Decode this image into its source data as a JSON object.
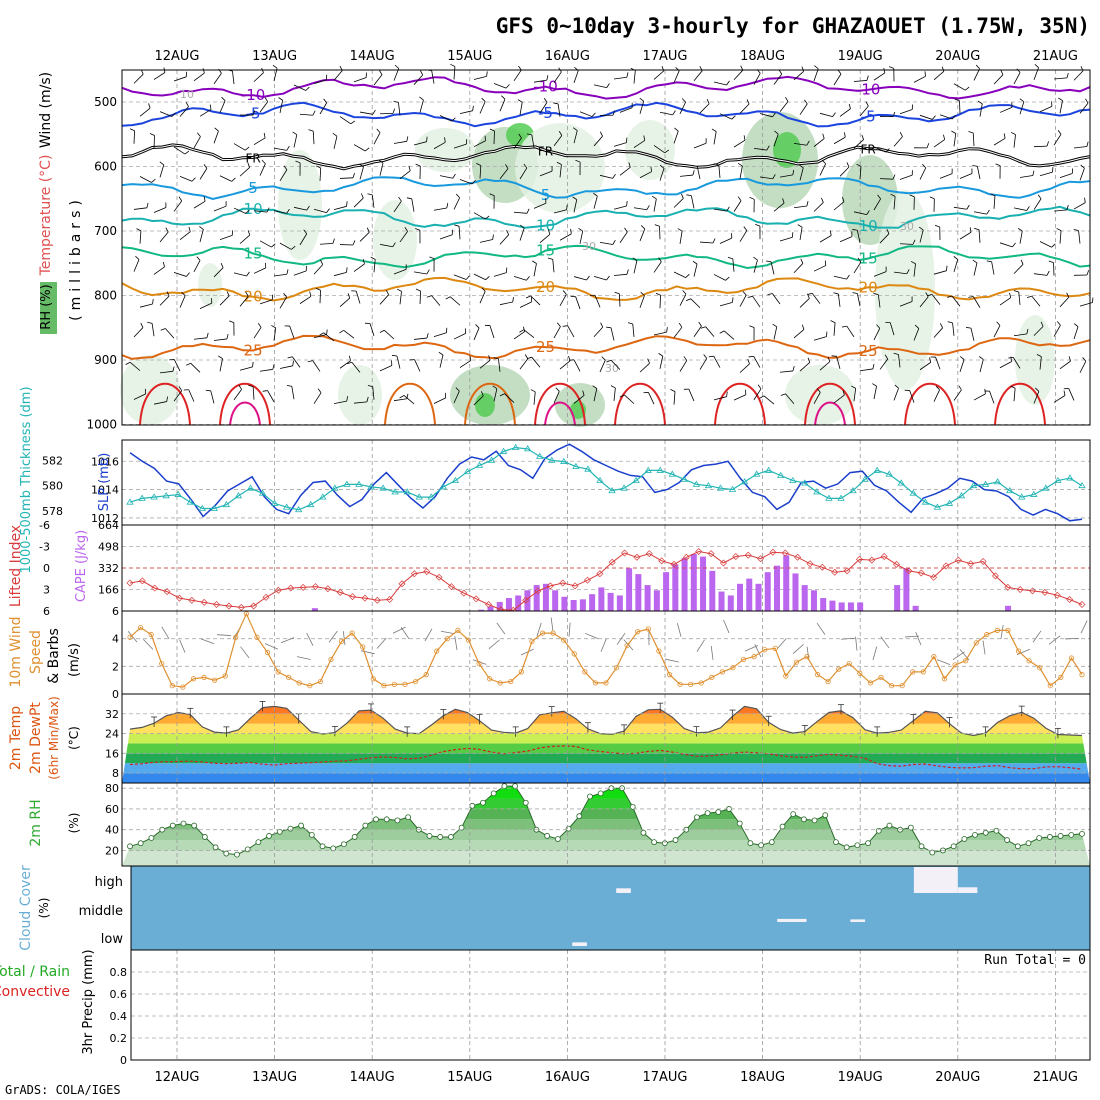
{
  "header": {
    "title": "GFS 0~10day 3-hourly for GHAZAOUET (1.75W, 35N)",
    "credit": "GrADS: COLA/IGES"
  },
  "colors": {
    "rh_light": "#e3f1e3",
    "rh_mid": "#b9d8b9",
    "rh_dark": "#8aa88a",
    "rh_green": "#55cc55",
    "t_violet": "#8800bb",
    "t_blue": "#1a44dd",
    "t_sky": "#1899dd",
    "t_teal": "#18b0b0",
    "t_green": "#11b884",
    "t_orange": "#dd8811",
    "t_darkorange": "#dd6611",
    "t_red": "#dd2222",
    "t_magenta": "#dd1188",
    "freeze": "#000000",
    "slp": "#1a3fcc",
    "thickness": "#22b4b4",
    "lifted": "#d83a3a",
    "cape": "#bb66ee",
    "wind": "#e09030",
    "cloud": "#6aaed6",
    "rh2m": "#33aa33"
  },
  "chart_data": [
    {
      "panel": "upper-air",
      "type": "contour",
      "ylabel_parts": [
        "RH (%)",
        "Temperature (°C)",
        "Wind (m/s)"
      ],
      "yaxis_title": "(millibars)",
      "ylim": [
        1000,
        450
      ],
      "yticks": [
        500,
        600,
        700,
        800,
        900,
        1000
      ],
      "xticks": [
        "12AUG",
        "13AUG",
        "14AUG",
        "15AUG",
        "16AUG",
        "17AUG",
        "18AUG",
        "19AUG",
        "20AUG",
        "21AUG"
      ],
      "isotherms": [
        {
          "value": -10,
          "label": "-10",
          "pressure": 478,
          "color": "t_violet"
        },
        {
          "value": -5,
          "label": "-5",
          "pressure": 520,
          "color": "t_blue"
        },
        {
          "value": 0,
          "label": "FR",
          "pressure": 585,
          "color": "freeze"
        },
        {
          "value": 5,
          "label": "5",
          "pressure": 632,
          "color": "t_sky"
        },
        {
          "value": 10,
          "label": "10",
          "pressure": 680,
          "color": "t_teal"
        },
        {
          "value": 15,
          "label": "15",
          "pressure": 740,
          "color": "t_green"
        },
        {
          "value": 20,
          "label": "20",
          "pressure": 790,
          "color": "t_orange"
        },
        {
          "value": 25,
          "label": "25",
          "pressure": 880,
          "color": "t_darkorange"
        }
      ],
      "rh_labels": [
        "10",
        "30",
        "30",
        "30"
      ]
    },
    {
      "panel": "slp-thickness",
      "type": "line",
      "ylabel_left": "1000-500mb Thickness (dm)",
      "ylabel_right": "SLP (mb)",
      "thickness_ticks": [
        578,
        580,
        582
      ],
      "slp_ticks": [
        1012,
        1014,
        1016
      ],
      "thickness_range": [
        576.9,
        583.6
      ],
      "slp_range": [
        1011.5,
        1017.5
      ],
      "series": [
        {
          "name": "SLP",
          "axis": "right",
          "values": [
            1016.6,
            1016,
            1015.5,
            1014.6,
            1014.4,
            1013.3,
            1012.1,
            1012.9,
            1013.9,
            1014.4,
            1014.9,
            1013.5,
            1012.6,
            1012.3,
            1013.6,
            1014.5,
            1014.6,
            1013.6,
            1012.8,
            1013.3,
            1014.4,
            1015.2,
            1014.3,
            1013.4,
            1012.7,
            1013.5,
            1014.8,
            1015.8,
            1016.3,
            1016.1,
            1016.7,
            1015.7,
            1015.4,
            1014.8,
            1016.2,
            1016.8,
            1017.2,
            1016.7,
            1016.1,
            1015.7,
            1015.3,
            1015,
            1014.9,
            1013.8,
            1014,
            1014.5,
            1015.4,
            1015.7,
            1015.8,
            1016,
            1014.8,
            1013.8,
            1013.5,
            1012.6,
            1013.1,
            1014.5,
            1014.6,
            1014.1,
            1014.4,
            1015.2,
            1015.3,
            1014.3,
            1013.9,
            1013.1,
            1012.4,
            1013.4,
            1013.7,
            1014.1,
            1014.8,
            1014.6,
            1014,
            1013.9,
            1013.5,
            1012.6,
            1012.2,
            1012.6,
            1012.3,
            1011.8,
            1011.9
          ]
        },
        {
          "name": "Thickness",
          "axis": "left",
          "values": [
            578.7,
            579,
            579.1,
            579.2,
            579.3,
            578.7,
            578.2,
            578.2,
            578.5,
            579.2,
            579.8,
            579.4,
            578.6,
            578.3,
            578.1,
            578.5,
            579.1,
            579.8,
            580.1,
            580.1,
            579.9,
            579.8,
            579.5,
            579.5,
            579.1,
            579.1,
            579.9,
            580.4,
            581.1,
            581.6,
            582,
            582.7,
            583,
            582.9,
            582.3,
            582,
            581.9,
            581.5,
            581.3,
            580.4,
            579.6,
            579.8,
            580.4,
            581.2,
            581.2,
            580.9,
            580.5,
            580.1,
            580,
            579.8,
            579.7,
            580.3,
            580.9,
            581.2,
            580.8,
            580.4,
            580.2,
            579.5,
            579,
            579,
            579.6,
            580.5,
            581.2,
            580.9,
            580.2,
            579.4,
            578.7,
            578.3,
            578.6,
            579.2,
            580,
            580.1,
            580.3,
            579.6,
            579.1,
            579.3,
            579.8,
            580.4,
            580.6,
            580
          ]
        }
      ]
    },
    {
      "panel": "lifted-cape",
      "type": "bar+line",
      "ylabel_left": "Lifted Index",
      "ylabel_right": "CAPE (J/kg)",
      "lifted_ticks": [
        "-6",
        "-3",
        "0",
        "3",
        "6"
      ],
      "cape_ticks": [
        166,
        332,
        498,
        664
      ],
      "lifted_range": [
        -6,
        6
      ],
      "cape_range": [
        0,
        664
      ],
      "lifted_index": [
        2.1,
        1.8,
        2.8,
        3.3,
        4.2,
        4.5,
        4.8,
        5.1,
        5.3,
        5.5,
        5.3,
        4.1,
        3.1,
        2.8,
        2.7,
        2.6,
        2.9,
        3.4,
        4.0,
        4.2,
        4.5,
        4.4,
        2.2,
        0.8,
        0.5,
        1.3,
        2.6,
        3.5,
        4.3,
        5.1,
        5.8,
        5.9,
        4.5,
        3.2,
        2.5,
        2.1,
        2.5,
        1.7,
        0.8,
        -0.8,
        -2.1,
        -1.5,
        -2.0,
        -1.0,
        -0.5,
        -1.5,
        -2.3,
        -2.0,
        -0.7,
        -1.6,
        -1.8,
        -1.3,
        -2.2,
        -2.1,
        -1.5,
        -0.6,
        -0.1,
        0.6,
        0.4,
        -1.2,
        -1.1,
        -1.6,
        -0.5,
        0.4,
        0.7,
        1.3,
        -0.3,
        -1.1,
        -0.6,
        -0.9,
        1.1,
        2.7,
        3.0,
        3.2,
        3.4,
        3.8,
        4.4,
        5.1
      ],
      "cape_values": [
        0,
        0,
        0,
        0,
        0,
        0,
        0,
        0,
        0,
        0,
        0,
        0,
        0,
        0,
        0,
        0,
        0,
        0,
        0,
        0,
        22,
        0,
        0,
        0,
        0,
        0,
        0,
        0,
        0,
        0,
        0,
        0,
        0,
        0,
        0,
        0,
        0,
        0,
        10,
        35,
        70,
        100,
        120,
        160,
        200,
        210,
        160,
        110,
        85,
        90,
        130,
        182,
        140,
        120,
        330,
        285,
        200,
        160,
        300,
        360,
        408,
        440,
        420,
        310,
        150,
        120,
        210,
        250,
        210,
        300,
        350,
        430,
        290,
        200,
        160,
        100,
        80,
        66,
        66,
        66,
        0,
        0,
        0,
        200,
        330,
        40,
        0,
        0,
        0,
        0,
        0,
        0,
        0,
        0,
        0,
        40,
        0,
        0,
        0,
        0,
        0,
        0,
        0,
        0
      ]
    },
    {
      "panel": "wind-10m",
      "type": "line",
      "ylabel_left": "10m Wind",
      "ylabel_mid": "Speed",
      "ylabel_right": "& Barbs",
      "yunit": "(m/s)",
      "yticks": [
        0,
        2,
        4,
        6
      ],
      "ylim": [
        0,
        6
      ],
      "values": [
        4.1,
        4.8,
        4.3,
        2.2,
        0.6,
        0.5,
        1.1,
        1.2,
        1.0,
        1.3,
        4.1,
        5.8,
        4.1,
        3.0,
        1.6,
        1.2,
        0.8,
        0.6,
        0.9,
        2.5,
        3.8,
        4.4,
        3.4,
        1.1,
        0.6,
        0.7,
        0.7,
        0.9,
        1.4,
        3.1,
        4.0,
        4.6,
        3.9,
        2.2,
        1.1,
        0.8,
        0.9,
        1.6,
        3.8,
        4.4,
        4.4,
        3.9,
        2.9,
        1.6,
        0.8,
        0.8,
        1.9,
        3.5,
        4.5,
        4.7,
        3.1,
        1.4,
        0.7,
        0.7,
        0.8,
        1.2,
        1.6,
        1.9,
        2.5,
        2.7,
        3.2,
        3.3,
        1.3,
        2.3,
        2.7,
        1.4,
        0.9,
        1.8,
        2.2,
        1.5,
        0.8,
        1.2,
        0.6,
        0.6,
        1.6,
        1.6,
        2.7,
        1.1,
        2.1,
        2.4,
        3.7,
        4.3,
        4.6,
        4.6,
        3.1,
        2.4,
        1.9,
        0.6,
        1.2,
        2.6,
        1.4
      ]
    },
    {
      "panel": "temp-2m",
      "type": "area",
      "ylabel_parts": [
        "2m Temp",
        "2m DewPt",
        "(6hr Min/Max)"
      ],
      "yunit": "(°C)",
      "yticks": [
        8,
        16,
        24,
        32
      ],
      "ylim": [
        4,
        40
      ],
      "temperature": [
        25.8,
        26.5,
        28.2,
        31.2,
        32.5,
        31.7,
        26.7,
        24.6,
        24.2,
        25.5,
        30.2,
        34.5,
        35.0,
        34.2,
        29.5,
        24.8,
        23.8,
        24.4,
        28.2,
        33.2,
        33.5,
        30.2,
        25.8,
        24.2,
        24.0,
        27.4,
        31.2,
        33.8,
        32.5,
        29.2,
        25.4,
        24.5,
        24.2,
        26.0,
        31.6,
        32.4,
        33.0,
        30.0,
        25.9,
        24.0,
        23.7,
        25.0,
        31.0,
        33.6,
        33.8,
        30.6,
        26.0,
        24.3,
        24.6,
        26.3,
        31.0,
        35.0,
        34.0,
        28.5,
        25.6,
        24.2,
        24.8,
        28.8,
        32.5,
        33.2,
        30.4,
        25.5,
        24.2,
        24.5,
        25.4,
        29.2,
        33.0,
        32.4,
        28.0,
        24.2,
        23.2,
        24.2,
        28.5,
        31.2,
        32.6,
        30.2,
        26.2,
        23.6,
        23.4,
        23.2
      ],
      "dewpoint": [
        11.5,
        11.8,
        12.4,
        12.6,
        12.7,
        12.8,
        12.5,
        12.0,
        11.8,
        12.0,
        12.3,
        11.6,
        11.3,
        11.8,
        12.0,
        12.2,
        12.5,
        12.8,
        13.0,
        13.6,
        14.2,
        14.6,
        14.3,
        13.8,
        14.0,
        15.2,
        16.7,
        17.5,
        18.0,
        17.6,
        16.5,
        15.8,
        16.3,
        16.9,
        18.2,
        18.8,
        19.0,
        18.8,
        17.4,
        16.8,
        16.2,
        15.8,
        16.0,
        16.8,
        17.2,
        16.5,
        15.6,
        14.8,
        14.9,
        15.4,
        16.1,
        16.5,
        16.2,
        15.8,
        15.0,
        14.5,
        14.4,
        15.0,
        15.6,
        15.2,
        14.8,
        14.0,
        11.8,
        11.0,
        10.8,
        11.5,
        11.7,
        10.9,
        10.3,
        10.1,
        10.2,
        10.8,
        11.0,
        10.2,
        9.8,
        9.8,
        10.5,
        10.6,
        10.2,
        9.6
      ]
    },
    {
      "panel": "rh-2m",
      "type": "area",
      "ylabel": "2m RH",
      "yunit": "(%)",
      "yticks": [
        20,
        40,
        60,
        80
      ],
      "ylim": [
        5,
        85
      ],
      "values": [
        24,
        27,
        32,
        40,
        44,
        46,
        44,
        33,
        23,
        17,
        16,
        21,
        28,
        34,
        38,
        41,
        44,
        35,
        24,
        22,
        26,
        33,
        44,
        50,
        50,
        49,
        52,
        40,
        34,
        33,
        33,
        42,
        63,
        66,
        75,
        82,
        82,
        66,
        40,
        34,
        31,
        41,
        53,
        72,
        75,
        80,
        80,
        62,
        37,
        28,
        27,
        30,
        40,
        52,
        56,
        57,
        60,
        46,
        27,
        25,
        28,
        43,
        55,
        50,
        49,
        54,
        28,
        23,
        25,
        27,
        39,
        44,
        40,
        42,
        24,
        18,
        20,
        24,
        31,
        35,
        37,
        39,
        30,
        24,
        27,
        32,
        33,
        34,
        35,
        36
      ]
    },
    {
      "panel": "cloud-cover",
      "type": "heatmap",
      "ylabel": "Cloud Cover",
      "yunit": "(%)",
      "rows": [
        "high",
        "middle",
        "low"
      ],
      "blocks": [
        {
          "layer": "high",
          "x_start": 4.5,
          "x_end": 4.65,
          "value": 18
        },
        {
          "layer": "low",
          "x_start": 4.05,
          "x_end": 4.2,
          "value": 14
        },
        {
          "layer": "middle",
          "x_start": 6.15,
          "x_end": 6.45,
          "value": 12
        },
        {
          "layer": "middle",
          "x_start": 6.9,
          "x_end": 7.05,
          "value": 10
        },
        {
          "layer": "high",
          "x_start": 7.55,
          "x_end": 8.0,
          "value": 100
        },
        {
          "layer": "high",
          "x_start": 8.0,
          "x_end": 8.2,
          "value": 22
        }
      ]
    },
    {
      "panel": "precip",
      "type": "bar",
      "ylabel_parts": [
        "Total / Rain",
        "Convective",
        "3hr Precip (mm)"
      ],
      "yticks": [
        "0",
        "0.2",
        "0.4",
        "0.6",
        "0.8"
      ],
      "ylim": [
        0,
        1.0
      ],
      "run_total_label": "Run Total = 0",
      "values": []
    }
  ]
}
